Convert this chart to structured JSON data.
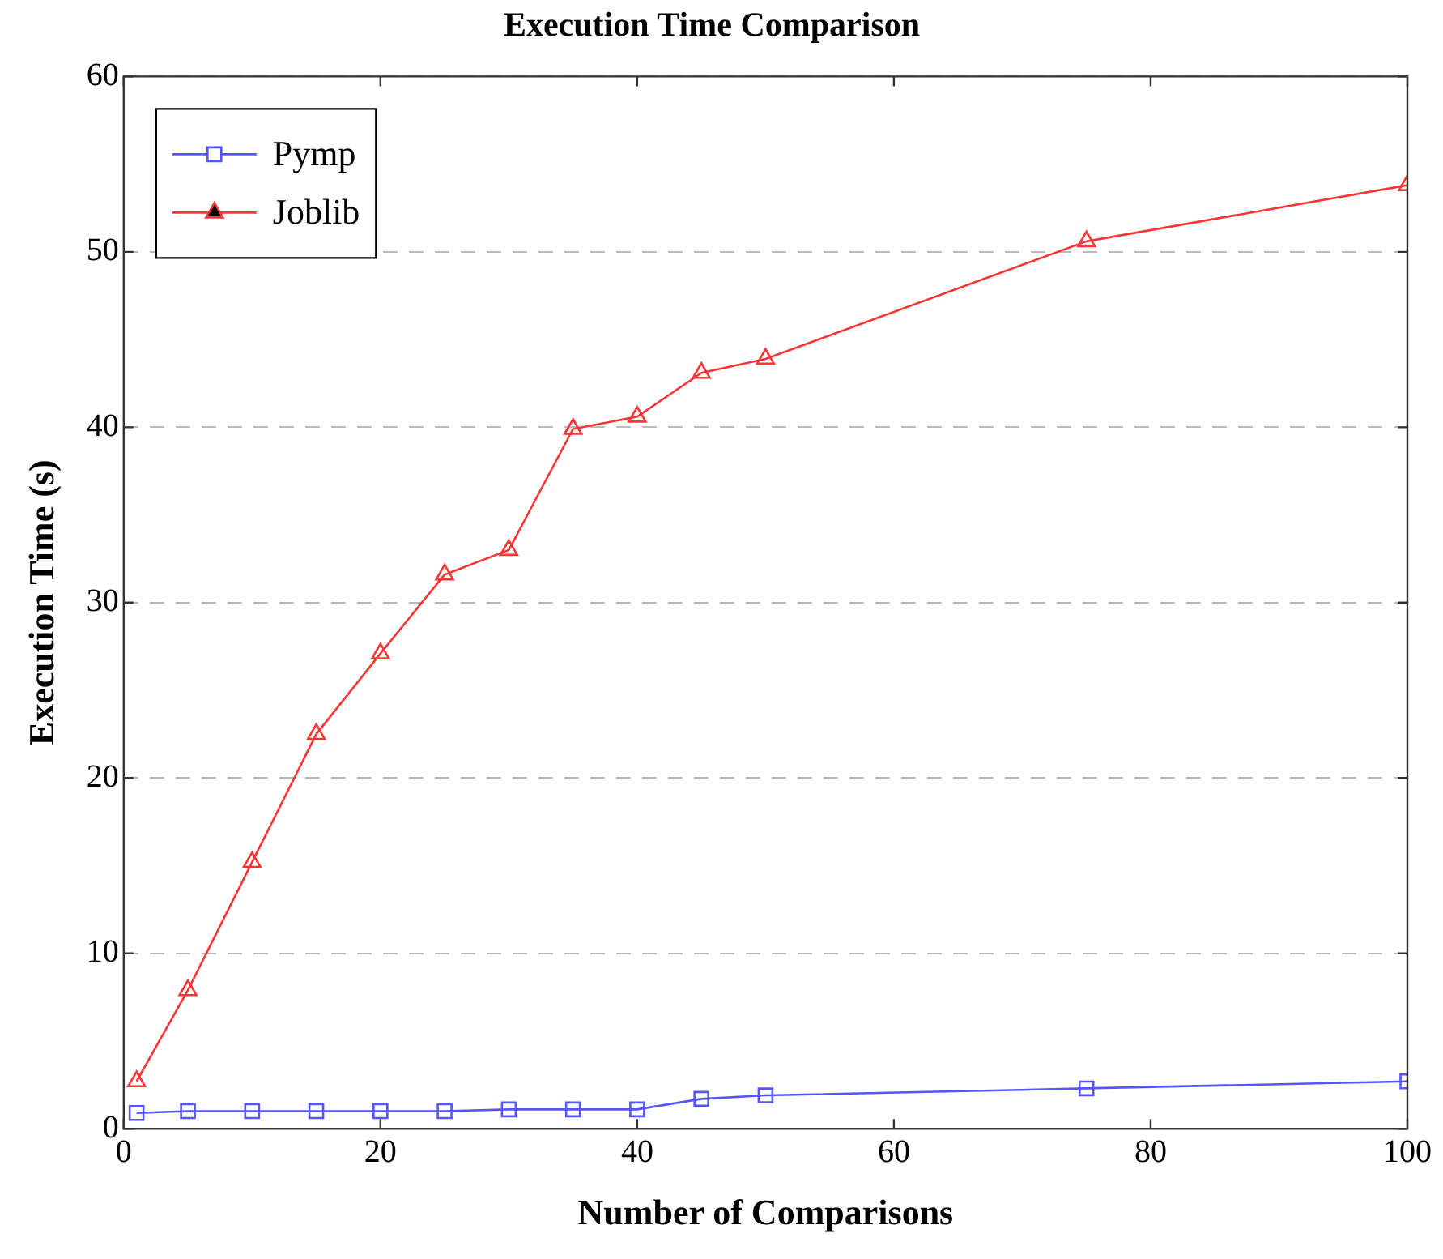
{
  "chart_data": {
    "type": "line",
    "title": "Execution Time Comparison",
    "xlabel": "Number of Comparisons",
    "ylabel": "Execution Time (s)",
    "x": [
      1,
      5,
      10,
      15,
      20,
      25,
      30,
      35,
      40,
      45,
      50,
      75,
      100
    ],
    "series": [
      {
        "name": "Pymp",
        "color": "#5555ff",
        "marker": "square",
        "values": [
          0.9,
          1.0,
          1.0,
          1.0,
          1.0,
          1.0,
          1.1,
          1.1,
          1.1,
          1.7,
          1.9,
          2.3,
          2.7
        ]
      },
      {
        "name": "Joblib",
        "color": "#ff3333",
        "marker": "triangle",
        "values": [
          2.7,
          7.9,
          15.2,
          22.5,
          27.1,
          31.6,
          33.0,
          39.9,
          40.6,
          43.1,
          43.9,
          50.6,
          53.8
        ]
      }
    ],
    "xlim": [
      0,
      100
    ],
    "xticks": [
      0,
      20,
      40,
      60,
      80,
      100
    ],
    "ylim": [
      0,
      60
    ],
    "yticks": [
      0,
      10,
      20,
      30,
      40,
      50,
      60
    ],
    "grid": "y",
    "legend": "top left",
    "line_style": "solid"
  }
}
